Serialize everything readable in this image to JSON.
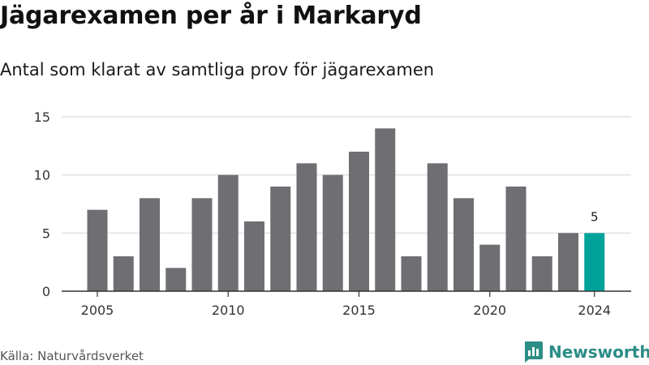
{
  "header": {
    "title": "Jägarexamen per år i Markaryd",
    "subtitle": "Antal som klarat av samtliga prov för jägarexamen"
  },
  "footer": {
    "source": "Källa: Naturvårdsverket",
    "brand": "Newsworthy"
  },
  "colors": {
    "bar": "#6e6e73",
    "highlight": "#00a39a",
    "grid": "#d9d9d9",
    "axis": "#333333",
    "brand": "#2a8d86"
  },
  "chart_data": {
    "type": "bar",
    "x": [
      2005,
      2006,
      2007,
      2008,
      2009,
      2010,
      2011,
      2012,
      2013,
      2014,
      2015,
      2016,
      2017,
      2018,
      2019,
      2020,
      2021,
      2022,
      2023,
      2024
    ],
    "values": [
      7,
      3,
      8,
      2,
      8,
      10,
      6,
      9,
      11,
      10,
      12,
      14,
      3,
      11,
      8,
      4,
      9,
      3,
      5,
      5
    ],
    "highlight_x": 2024,
    "highlight_label": "5",
    "x_ticks": [
      "2005",
      "2010",
      "2015",
      "2020",
      "2024"
    ],
    "y_ticks": [
      "0",
      "5",
      "10",
      "15"
    ],
    "ylim": [
      0,
      15
    ],
    "xlabel": "",
    "ylabel": "",
    "grid": true
  }
}
